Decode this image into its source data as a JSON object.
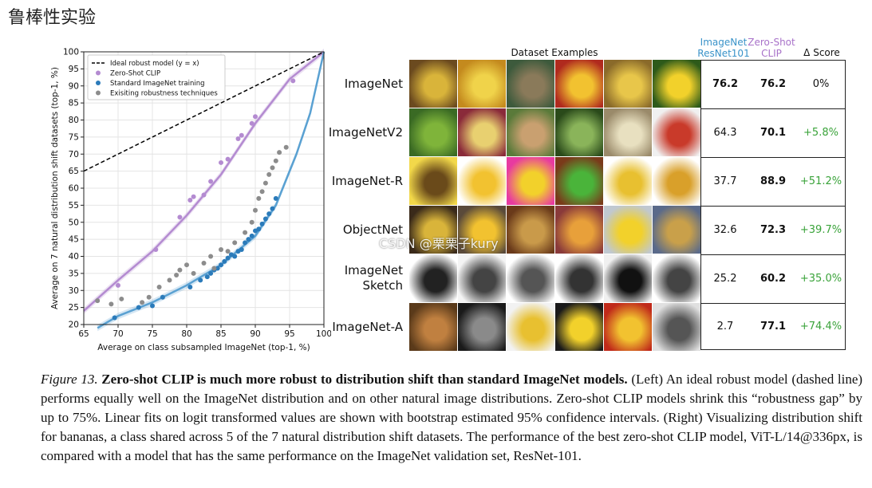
{
  "page_title": "鲁棒性实验",
  "chart_data": {
    "type": "scatter",
    "xlabel": "Average on class subsampled ImageNet (top-1, %)",
    "ylabel": "Average on 7 natural distribution shift datasets (top-1, %)",
    "xlim": [
      65,
      100
    ],
    "ylim": [
      20,
      100
    ],
    "xticks": [
      65,
      70,
      75,
      80,
      85,
      90,
      95,
      100
    ],
    "yticks": [
      20,
      25,
      30,
      35,
      40,
      45,
      50,
      55,
      60,
      65,
      70,
      75,
      80,
      85,
      90,
      95,
      100
    ],
    "grid": true,
    "legend_position": "top-left",
    "legend": [
      {
        "label": "Ideal robust model (y = x)",
        "marker": "dashed-line",
        "color": "#000000"
      },
      {
        "label": "Zero-Shot CLIP",
        "marker": "dot",
        "color": "#b48bd1"
      },
      {
        "label": "Standard ImageNet training",
        "marker": "dot",
        "color": "#2b7bba"
      },
      {
        "label": "Exisiting robustness techniques",
        "marker": "dot",
        "color": "#8c8c8c"
      }
    ],
    "series": [
      {
        "name": "Zero-Shot CLIP",
        "color": "#b48bd1",
        "points": [
          [
            70.0,
            31.5
          ],
          [
            75.5,
            42.0
          ],
          [
            79.0,
            51.5
          ],
          [
            80.5,
            56.5
          ],
          [
            81.0,
            57.5
          ],
          [
            82.5,
            58.0
          ],
          [
            83.5,
            62.0
          ],
          [
            85.0,
            67.5
          ],
          [
            86.0,
            68.5
          ],
          [
            87.5,
            74.5
          ],
          [
            88.0,
            75.5
          ],
          [
            89.5,
            79.0
          ],
          [
            90.0,
            81.0
          ],
          [
            95.5,
            91.5
          ]
        ]
      },
      {
        "name": "Standard ImageNet training",
        "color": "#2b7bba",
        "points": [
          [
            69.5,
            22.0
          ],
          [
            73.0,
            25.0
          ],
          [
            75.0,
            25.5
          ],
          [
            76.5,
            28.0
          ],
          [
            80.5,
            31.0
          ],
          [
            82.0,
            33.0
          ],
          [
            83.0,
            34.0
          ],
          [
            83.5,
            35.0
          ],
          [
            84.0,
            36.0
          ],
          [
            84.5,
            36.5
          ],
          [
            85.0,
            37.5
          ],
          [
            85.5,
            38.5
          ],
          [
            86.0,
            39.5
          ],
          [
            86.5,
            40.5
          ],
          [
            87.0,
            40.0
          ],
          [
            87.5,
            41.5
          ],
          [
            88.0,
            42.0
          ],
          [
            88.5,
            44.0
          ],
          [
            89.0,
            45.0
          ],
          [
            89.5,
            46.0
          ],
          [
            90.0,
            47.5
          ],
          [
            90.5,
            48.0
          ],
          [
            91.0,
            49.5
          ],
          [
            91.5,
            51.0
          ],
          [
            92.0,
            52.5
          ],
          [
            92.5,
            54.0
          ],
          [
            93.0,
            57.0
          ]
        ]
      },
      {
        "name": "Exisiting robustness techniques",
        "color": "#8c8c8c",
        "points": [
          [
            67.0,
            27.0
          ],
          [
            69.0,
            26.0
          ],
          [
            70.5,
            27.5
          ],
          [
            73.5,
            26.5
          ],
          [
            74.5,
            28.0
          ],
          [
            76.0,
            31.0
          ],
          [
            77.5,
            33.0
          ],
          [
            78.5,
            34.5
          ],
          [
            79.0,
            36.0
          ],
          [
            80.0,
            37.5
          ],
          [
            81.0,
            35.0
          ],
          [
            82.5,
            38.0
          ],
          [
            83.5,
            40.0
          ],
          [
            84.0,
            36.5
          ],
          [
            85.0,
            42.0
          ],
          [
            86.0,
            41.5
          ],
          [
            87.0,
            44.0
          ],
          [
            88.5,
            47.0
          ],
          [
            89.5,
            50.0
          ],
          [
            90.0,
            53.5
          ],
          [
            90.5,
            57.0
          ],
          [
            91.0,
            59.0
          ],
          [
            91.5,
            61.5
          ],
          [
            92.0,
            64.0
          ],
          [
            92.5,
            66.0
          ],
          [
            93.0,
            68.0
          ],
          [
            93.5,
            70.5
          ],
          [
            94.5,
            72.0
          ]
        ]
      }
    ],
    "reference_line": {
      "name": "Ideal robust model (y = x)",
      "from": [
        65,
        65
      ],
      "to": [
        100,
        100
      ]
    },
    "fit_curves": [
      {
        "series": "Zero-Shot CLIP",
        "color": "#b48bd1",
        "points": [
          [
            65,
            24
          ],
          [
            70,
            33
          ],
          [
            75,
            41.5
          ],
          [
            80,
            52
          ],
          [
            85,
            64
          ],
          [
            90,
            79
          ],
          [
            95,
            92
          ],
          [
            100,
            100
          ]
        ]
      },
      {
        "series": "Standard ImageNet training",
        "color": "#5aa1d2",
        "points": [
          [
            67,
            19
          ],
          [
            70,
            22.5
          ],
          [
            75,
            26.5
          ],
          [
            80,
            31.5
          ],
          [
            85,
            37.5
          ],
          [
            90,
            46
          ],
          [
            93,
            55
          ],
          [
            96,
            70
          ],
          [
            98,
            82
          ],
          [
            100,
            100
          ]
        ]
      }
    ]
  },
  "table": {
    "header_examples": "Dataset Examples",
    "header_resnet": [
      "ImageNet",
      "ResNet101"
    ],
    "header_clip": [
      "Zero-Shot",
      "CLIP"
    ],
    "header_delta": "Δ Score",
    "rows": [
      {
        "label": "ImageNet",
        "resnet": "76.2",
        "clip": "76.2",
        "delta": "0%"
      },
      {
        "label": "ImageNetV2",
        "resnet": "64.3",
        "clip": "70.1",
        "delta": "+5.8%"
      },
      {
        "label": "ImageNet-R",
        "resnet": "37.7",
        "clip": "88.9",
        "delta": "+51.2%"
      },
      {
        "label": "ObjectNet",
        "resnet": "32.6",
        "clip": "72.3",
        "delta": "+39.7%"
      },
      {
        "label": "ImageNet Sketch",
        "label_lines": [
          "ImageNet",
          "Sketch"
        ],
        "resnet": "25.2",
        "clip": "60.2",
        "delta": "+35.0%"
      },
      {
        "label": "ImageNet-A",
        "resnet": "2.7",
        "clip": "77.1",
        "delta": "+74.4%"
      }
    ],
    "colors": {
      "resnet": "#3a93c9",
      "clip": "#a872c9",
      "delta_positive": "#3aa33a"
    }
  },
  "watermark": "CSDN @栗栗子kury",
  "caption": {
    "figure_label": "Figure 13.",
    "bold_title": "Zero-shot CLIP is much more robust to distribution shift than standard ImageNet models.",
    "body": "(Left) An ideal robust model (dashed line) performs equally well on the ImageNet distribution and on other natural image distributions. Zero-shot CLIP models shrink this “robustness gap” by up to 75%. Linear fits on logit transformed values are shown with bootstrap estimated 95% confidence intervals. (Right) Visualizing distribution shift for bananas, a class shared across 5 of the 7 natural distribution shift datasets. The performance of the best zero-shot CLIP model, ViT-L/14@336px, is compared with a model that has the same performance on the ImageNet validation set, ResNet-101."
  }
}
